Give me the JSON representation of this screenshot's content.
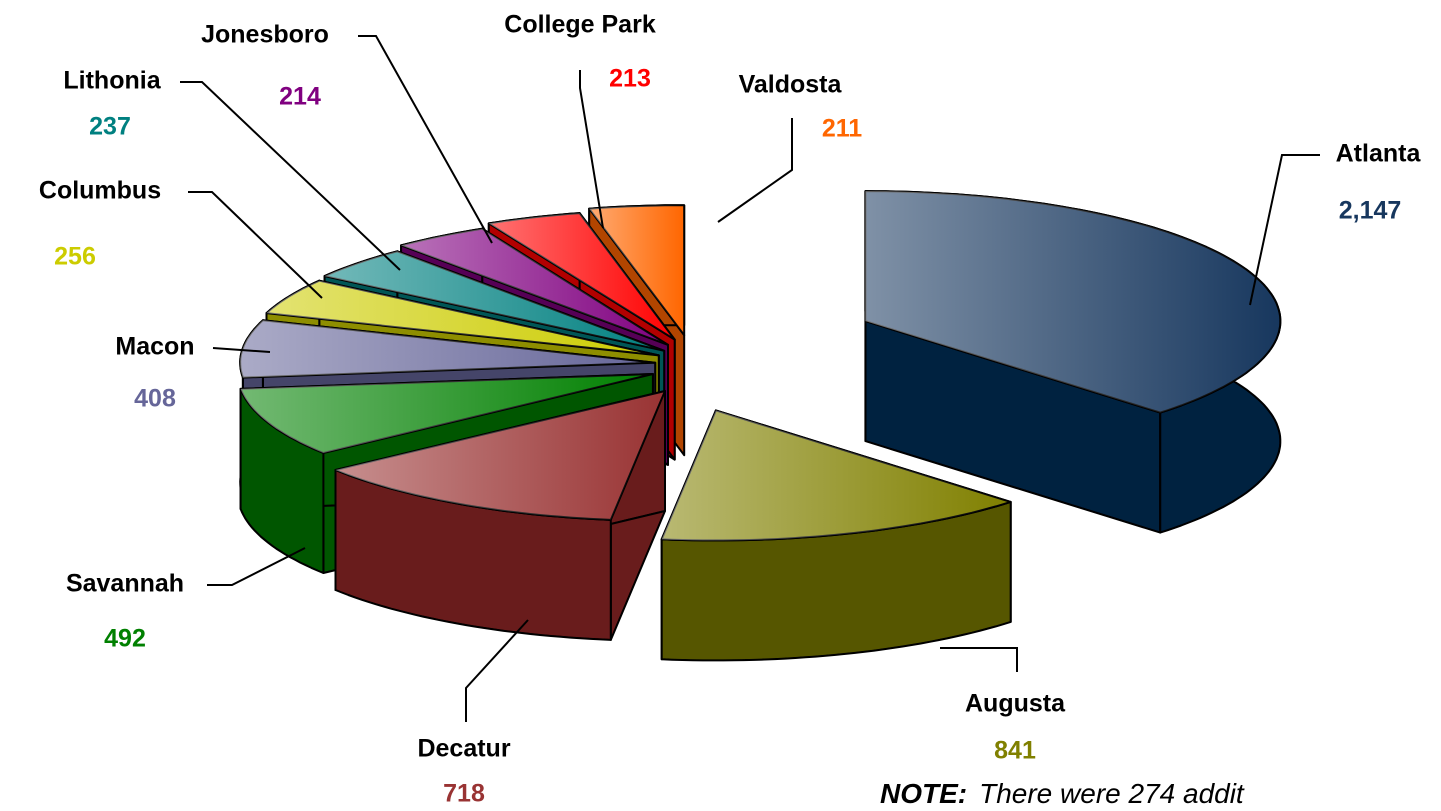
{
  "chart_data": {
    "type": "pie3d",
    "categories": [
      "Atlanta",
      "Augusta",
      "Decatur",
      "Savannah",
      "Macon",
      "Columbus",
      "Lithonia",
      "Jonesboro",
      "College Park",
      "Valdosta"
    ],
    "values": [
      2147,
      841,
      718,
      492,
      408,
      256,
      237,
      214,
      213,
      211
    ],
    "value_labels": [
      "2,147",
      "841",
      "718",
      "492",
      "408",
      "256",
      "237",
      "214",
      "213",
      "211"
    ],
    "colors": [
      "#17375e",
      "#808000",
      "#993333",
      "#008000",
      "#666699",
      "#cccc00",
      "#008080",
      "#800080",
      "#ff0000",
      "#ff6600"
    ],
    "note": {
      "label": "NOTE:",
      "text": "There were 274 addit"
    }
  }
}
